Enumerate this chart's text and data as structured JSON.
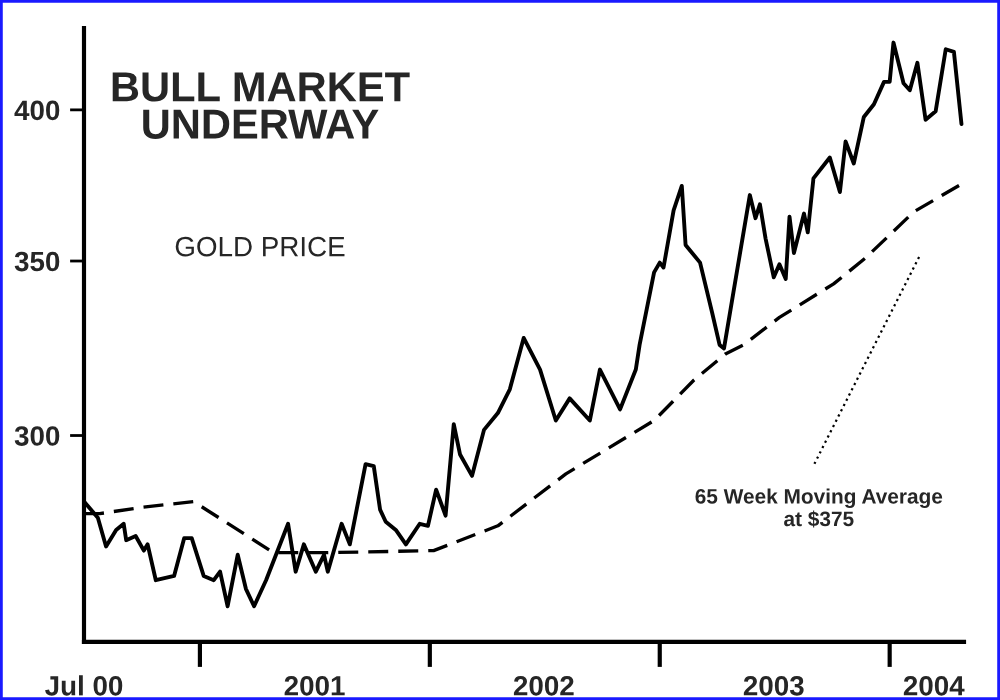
{
  "chart_data": {
    "type": "line",
    "title": "BULL MARKET\nUNDERWAY",
    "subtitle": "GOLD PRICE",
    "annotations": [
      "65 Week Moving Average\nat $375"
    ],
    "xlim": [
      "2000-07-01",
      "2004-04-28"
    ],
    "xticks": [
      {
        "value": "2000-07-01",
        "label": "Jul 00"
      },
      {
        "value": "2001-01-01",
        "label": null
      },
      {
        "value": "2001-07-02",
        "label": "2001"
      },
      {
        "value": "2002-01-01",
        "label": null
      },
      {
        "value": "2002-07-01",
        "label": "2002"
      },
      {
        "value": "2003-01-01",
        "label": null
      },
      {
        "value": "2003-07-01",
        "label": "2003"
      },
      {
        "value": "2004-01-01",
        "label": null
      },
      {
        "value": "2004-03-11",
        "label": "2004"
      }
    ],
    "log": "y",
    "ylim": [
      250,
      430
    ],
    "yticks": [
      300,
      350,
      400
    ],
    "grid": false,
    "legend": false,
    "series": [
      {
        "color": "#000000",
        "line_style": "solid",
        "x": [
          "2000-07-01",
          "2000-07-23",
          "2000-08-05",
          "2000-08-21",
          "2000-09-02",
          "2000-09-06",
          "2000-09-21",
          "2000-10-04",
          "2000-10-10",
          "2000-10-23",
          "2000-11-21",
          "2000-12-07",
          "2000-12-19",
          "2001-01-07",
          "2001-01-23",
          "2001-02-02",
          "2001-02-14",
          "2001-03-02",
          "2001-03-15",
          "2001-03-28",
          "2001-04-16",
          "2001-05-21",
          "2001-06-02",
          "2001-06-15",
          "2001-07-04",
          "2001-07-17",
          "2001-07-23",
          "2001-08-14",
          "2001-08-27",
          "2001-09-21",
          "2001-10-04",
          "2001-10-14",
          "2001-10-23",
          "2001-11-08",
          "2001-11-24",
          "2001-12-16",
          "2001-12-29",
          "2002-01-11",
          "2002-01-26",
          "2002-02-08",
          "2002-02-18",
          "2002-03-09",
          "2002-03-28",
          "2002-04-19",
          "2002-05-08",
          "2002-05-30",
          "2002-06-25",
          "2002-07-20",
          "2002-08-11",
          "2002-09-12",
          "2002-09-28",
          "2002-10-30",
          "2002-11-24",
          "2002-11-30",
          "2002-12-23",
          "2003-01-01",
          "2003-01-07",
          "2003-01-23",
          "2003-02-05",
          "2003-02-11",
          "2003-03-06",
          "2003-03-25",
          "2003-04-06",
          "2003-04-13",
          "2003-04-28",
          "2003-05-24",
          "2003-06-02",
          "2003-06-09",
          "2003-06-18",
          "2003-07-01",
          "2003-07-10",
          "2003-07-20",
          "2003-07-26",
          "2003-08-02",
          "2003-08-18",
          "2003-08-24",
          "2003-09-02",
          "2003-09-28",
          "2003-10-14",
          "2003-10-23",
          "2003-11-05",
          "2003-11-21",
          "2003-12-07",
          "2003-12-23",
          "2004-01-01",
          "2004-01-07",
          "2004-01-23",
          "2004-02-02",
          "2004-02-14",
          "2004-02-27",
          "2004-03-14",
          "2004-03-30",
          "2004-04-12",
          "2004-04-24"
        ],
        "values": [
          283,
          279,
          272,
          276,
          277.5,
          273.5,
          274.5,
          271,
          272.5,
          264,
          265,
          274,
          274,
          265,
          264,
          266,
          258,
          270,
          262,
          258,
          264,
          277.5,
          266,
          272.5,
          266,
          270,
          266,
          277.5,
          272.5,
          292.5,
          292,
          281,
          278,
          276,
          272.5,
          277.5,
          277,
          286,
          279.5,
          303,
          295,
          289.5,
          301.5,
          306,
          312.5,
          327,
          318,
          304,
          310,
          304,
          318,
          307,
          318,
          325,
          346.5,
          349.5,
          348,
          366,
          374,
          355,
          349.5,
          334.5,
          325,
          324,
          340.5,
          371,
          363.5,
          368,
          357,
          345,
          349,
          344.5,
          364,
          352.5,
          365,
          359,
          376.5,
          383.5,
          372,
          389,
          381.5,
          397.5,
          402,
          410,
          410,
          424.5,
          409.5,
          407,
          417,
          396.5,
          399.5,
          422,
          421,
          395
        ]
      },
      {
        "color": "#000000",
        "line_style": "dashed",
        "x": [
          "2000-07-01",
          "2000-07-26",
          "2000-09-28",
          "2000-12-22",
          "2001-04-28",
          "2001-07-20",
          "2002-01-07",
          "2002-04-19",
          "2002-08-05",
          "2002-12-23",
          "2003-02-24",
          "2003-04-16",
          "2003-05-14",
          "2003-07-10",
          "2003-10-04",
          "2003-11-24",
          "2004-02-08",
          "2004-04-27"
        ],
        "values": [
          280,
          280,
          281.5,
          283,
          270.5,
          270.5,
          271,
          277,
          290,
          304,
          315,
          322.5,
          325,
          333,
          343,
          351,
          365.5,
          375
        ]
      }
    ]
  }
}
